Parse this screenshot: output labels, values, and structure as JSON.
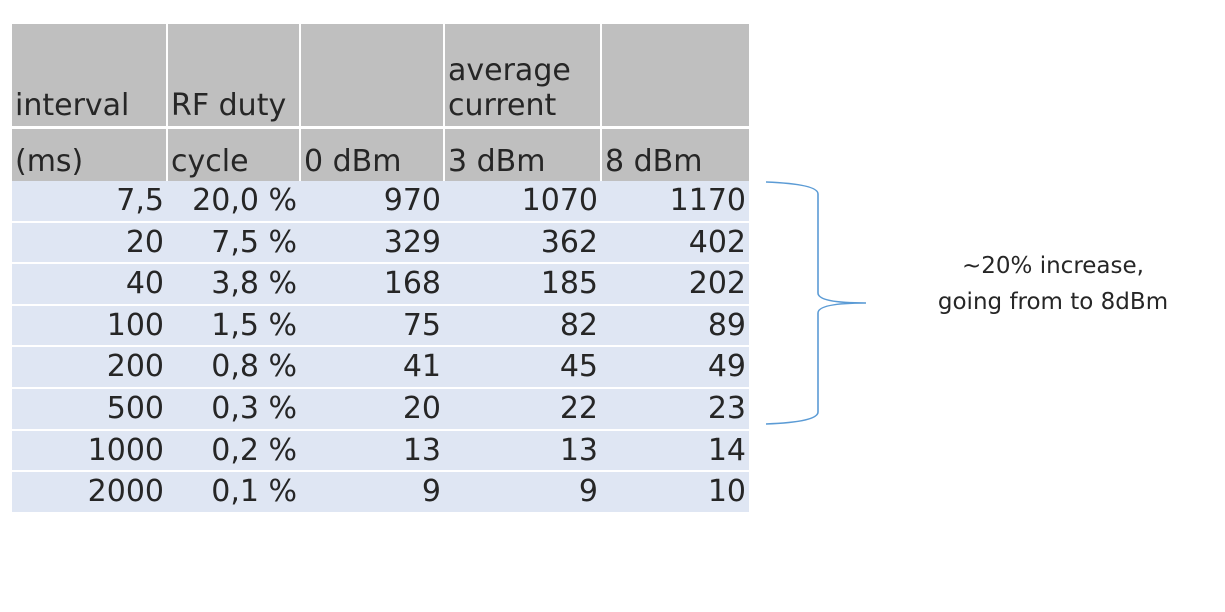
{
  "table": {
    "header_top": [
      "",
      "",
      "",
      "average\ncurrent",
      ""
    ],
    "header_bottom": [
      "(ms)",
      "cycle",
      "0 dBm",
      "3 dBm",
      "8 dBm"
    ],
    "header_first": [
      "interval",
      "RF duty"
    ],
    "rows": [
      [
        "7,5",
        "20,0 %",
        "970",
        "1070",
        "1170"
      ],
      [
        "20",
        "7,5 %",
        "329",
        "362",
        "402"
      ],
      [
        "40",
        "3,8 %",
        "168",
        "185",
        "202"
      ],
      [
        "100",
        "1,5 %",
        "75",
        "82",
        "89"
      ],
      [
        "200",
        "0,8 %",
        "41",
        "45",
        "49"
      ],
      [
        "500",
        "0,3 %",
        "20",
        "22",
        "23"
      ],
      [
        "1000",
        "0,2 %",
        "13",
        "13",
        "14"
      ],
      [
        "2000",
        "0,1 %",
        "9",
        "9",
        "10"
      ]
    ]
  },
  "annotation": {
    "line1": "~20% increase,",
    "line2": "going from to 8dBm"
  },
  "colors": {
    "header_bg": "#bfbfbf",
    "row_bg": "#dfe6f3",
    "brace": "#5b9bd5",
    "text": "#262626"
  }
}
